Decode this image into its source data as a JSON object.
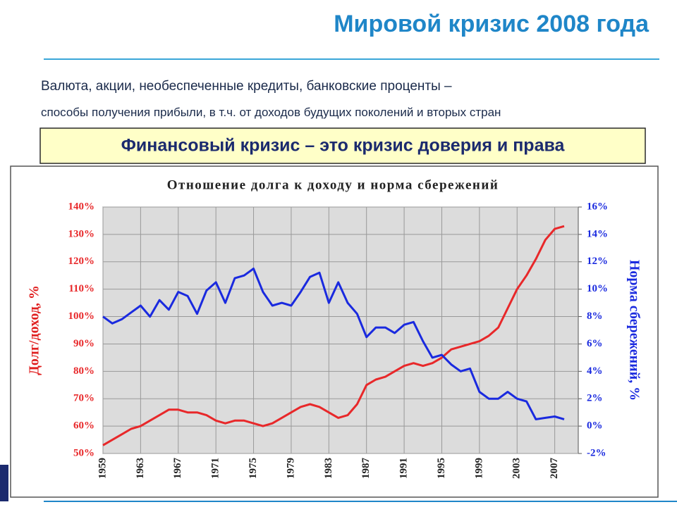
{
  "header": {
    "title": "Мировой кризис 2008 года",
    "lines": [
      "Валюта, акции, необеспеченные кредиты, банковские проценты –",
      "способы получения прибыли, в т.ч. от доходов будущих поколений и вторых стран"
    ],
    "highlight": "Финансовый кризис – это кризис доверия и права"
  },
  "chart_data": {
    "type": "line",
    "title": "Отношение долга к доходу и норма сбережений",
    "y_label": "Долг/доход, %",
    "y2_label": "Норма сбережений, %",
    "x": [
      1959,
      1960,
      1961,
      1962,
      1963,
      1964,
      1965,
      1966,
      1967,
      1968,
      1969,
      1970,
      1971,
      1972,
      1973,
      1974,
      1975,
      1976,
      1977,
      1978,
      1979,
      1980,
      1981,
      1982,
      1983,
      1984,
      1985,
      1986,
      1987,
      1988,
      1989,
      1990,
      1991,
      1992,
      1993,
      1994,
      1995,
      1996,
      1997,
      1998,
      1999,
      2000,
      2001,
      2002,
      2003,
      2004,
      2005,
      2006,
      2007,
      2008
    ],
    "series": [
      {
        "name": "Долг/доход",
        "color": "#e8282a",
        "axis": "y",
        "values": [
          53,
          55,
          57,
          59,
          60,
          62,
          64,
          66,
          66,
          65,
          65,
          64,
          62,
          61,
          62,
          62,
          61,
          60,
          61,
          63,
          65,
          67,
          68,
          67,
          65,
          63,
          64,
          68,
          75,
          77,
          78,
          80,
          82,
          83,
          82,
          83,
          85,
          88,
          89,
          90,
          91,
          93,
          96,
          103,
          110,
          115,
          121,
          128,
          132,
          133
        ]
      },
      {
        "name": "Норма сбережений",
        "color": "#1a2adf",
        "axis": "y2",
        "values": [
          8,
          7.5,
          7.8,
          8.3,
          8.8,
          8,
          9.2,
          8.5,
          9.8,
          9.5,
          8.2,
          9.9,
          10.5,
          9,
          10.8,
          11,
          11.5,
          9.8,
          8.8,
          9,
          8.8,
          9.8,
          10.9,
          11.2,
          9,
          10.5,
          9,
          8.2,
          6.5,
          7.2,
          7.2,
          6.8,
          7.4,
          7.6,
          6.2,
          5,
          5.2,
          4.5,
          4,
          4.2,
          2.5,
          2,
          2,
          2.5,
          2,
          1.8,
          0.5,
          0.6,
          0.7,
          0.5
        ]
      }
    ],
    "xlim": [
      1959,
      2009.5
    ],
    "xticks": [
      1959,
      1963,
      1967,
      1971,
      1975,
      1979,
      1983,
      1987,
      1991,
      1995,
      1999,
      2003,
      2007
    ],
    "ylim": [
      50,
      140
    ],
    "yticks": [
      {
        "value": 50,
        "label": "50%"
      },
      {
        "value": 60,
        "label": "60%"
      },
      {
        "value": 70,
        "label": "70%"
      },
      {
        "value": 80,
        "label": "80%"
      },
      {
        "value": 90,
        "label": "90%"
      },
      {
        "value": 100,
        "label": "100%"
      },
      {
        "value": 110,
        "label": "110%"
      },
      {
        "value": 120,
        "label": "120%"
      },
      {
        "value": 130,
        "label": "130%"
      },
      {
        "value": 140,
        "label": "140%"
      }
    ],
    "y2lim": [
      -2,
      16
    ],
    "y2ticks": [
      {
        "value": -2,
        "label": "-2%"
      },
      {
        "value": 0,
        "label": "0%"
      },
      {
        "value": 2,
        "label": "2%"
      },
      {
        "value": 4,
        "label": "4%"
      },
      {
        "value": 6,
        "label": "6%"
      },
      {
        "value": 8,
        "label": "8%"
      },
      {
        "value": 10,
        "label": "10%"
      },
      {
        "value": 12,
        "label": "12%"
      },
      {
        "value": 14,
        "label": "14%"
      },
      {
        "value": 16,
        "label": "16%"
      }
    ],
    "grid": true
  }
}
